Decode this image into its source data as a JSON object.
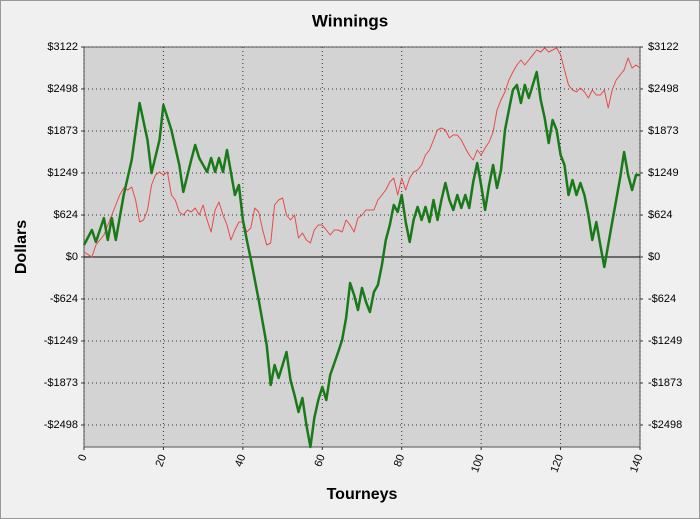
{
  "chart_data": {
    "type": "line",
    "title": "Winnings",
    "x_label": "Tourneys",
    "y_label": "Dollars",
    "xlim": [
      0,
      140
    ],
    "xticks": [
      0,
      20,
      40,
      60,
      80,
      100,
      120,
      140
    ],
    "ylim": [
      -2825,
      3122
    ],
    "yticks": [
      {
        "value": 3122,
        "label": "$3122"
      },
      {
        "value": 2498,
        "label": "$2498"
      },
      {
        "value": 1873,
        "label": "$1873"
      },
      {
        "value": 1249,
        "label": "$1249"
      },
      {
        "value": 624,
        "label": "$624"
      },
      {
        "value": 0,
        "label": "$0"
      },
      {
        "value": -624,
        "label": "-$624"
      },
      {
        "value": -1249,
        "label": "-$1249"
      },
      {
        "value": -1873,
        "label": "-$1873"
      },
      {
        "value": -2498,
        "label": "-$2498"
      }
    ],
    "grid": true,
    "series": [
      {
        "color": "#1a7a1a",
        "width": 2.5,
        "x": [
          0,
          2,
          3,
          5,
          6,
          7,
          8,
          10,
          12,
          14,
          16,
          17,
          19,
          20,
          22,
          24,
          25,
          27,
          28,
          29,
          31,
          32,
          33,
          34,
          35,
          36,
          38,
          39,
          40,
          41,
          42,
          44,
          46,
          47,
          48,
          49,
          50,
          51,
          52,
          53,
          54,
          55,
          56,
          57,
          58,
          59,
          60,
          61,
          62,
          64,
          65,
          66,
          67,
          68,
          69,
          70,
          71,
          72,
          73,
          74,
          75,
          76,
          77,
          78,
          79,
          80,
          81,
          82,
          83,
          84,
          85,
          86,
          87,
          88,
          89,
          90,
          91,
          92,
          93,
          94,
          95,
          96,
          97,
          98,
          99,
          100,
          101,
          102,
          103,
          104,
          105,
          106,
          107,
          108,
          109,
          110,
          111,
          112,
          113,
          114,
          115,
          116,
          117,
          118,
          119,
          120,
          121,
          122,
          123,
          124,
          125,
          126,
          127,
          128,
          129,
          130,
          131,
          132,
          133,
          134,
          135,
          136,
          137,
          138,
          139,
          140
        ],
        "values": [
          178,
          401,
          223,
          580,
          253,
          580,
          253,
          922,
          1442,
          2290,
          1740,
          1249,
          1740,
          2260,
          1888,
          1368,
          967,
          1442,
          1665,
          1472,
          1264,
          1472,
          1264,
          1472,
          1264,
          1591,
          922,
          1071,
          550,
          253,
          -30,
          -639,
          -1309,
          -1903,
          -1606,
          -1799,
          -1606,
          -1413,
          -1829,
          -2052,
          -2305,
          -2097,
          -2498,
          -2825,
          -2394,
          -2126,
          -1933,
          -2126,
          -1755,
          -1413,
          -1234,
          -907,
          -387,
          -565,
          -788,
          -461,
          -669,
          -818,
          -520,
          -416,
          -119,
          253,
          476,
          773,
          669,
          922,
          520,
          223,
          550,
          744,
          550,
          744,
          520,
          848,
          550,
          848,
          1100,
          848,
          699,
          922,
          729,
          922,
          729,
          1115,
          1398,
          1071,
          699,
          1071,
          1368,
          1026,
          1294,
          1888,
          2186,
          2483,
          2558,
          2290,
          2558,
          2364,
          2558,
          2751,
          2335,
          2067,
          1695,
          2037,
          1888,
          1517,
          1368,
          922,
          1145,
          922,
          1100,
          922,
          625,
          253,
          520,
          178,
          -149,
          178,
          520,
          848,
          1175,
          1561,
          1219,
          996,
          1219,
          1219
        ]
      },
      {
        "color": "#e84a4a",
        "width": 1,
        "x": [
          0,
          2,
          3,
          5,
          7,
          9,
          10,
          11,
          12,
          13,
          14,
          15,
          16,
          17,
          18,
          19,
          20,
          21,
          22,
          23,
          24,
          25,
          26,
          27,
          28,
          29,
          30,
          31,
          32,
          33,
          34,
          35,
          36,
          37,
          38,
          39,
          40,
          41,
          42,
          43,
          44,
          45,
          46,
          47,
          48,
          49,
          50,
          51,
          52,
          53,
          54,
          55,
          56,
          57,
          58,
          59,
          60,
          61,
          62,
          63,
          64,
          65,
          66,
          67,
          68,
          69,
          70,
          71,
          72,
          73,
          74,
          75,
          76,
          77,
          78,
          79,
          80,
          81,
          82,
          83,
          84,
          85,
          86,
          87,
          88,
          89,
          90,
          91,
          92,
          93,
          94,
          95,
          96,
          97,
          98,
          99,
          100,
          101,
          102,
          103,
          104,
          105,
          106,
          107,
          108,
          109,
          110,
          111,
          112,
          113,
          114,
          115,
          116,
          117,
          118,
          119,
          120,
          121,
          122,
          123,
          124,
          125,
          126,
          127,
          128,
          129,
          130,
          131,
          132,
          133,
          134,
          135,
          136,
          137,
          138,
          139,
          140
        ],
        "values": [
          74,
          0,
          178,
          327,
          625,
          922,
          1026,
          996,
          1041,
          848,
          520,
          550,
          699,
          1071,
          1219,
          1264,
          1219,
          1264,
          922,
          848,
          669,
          625,
          699,
          669,
          729,
          625,
          773,
          550,
          372,
          699,
          818,
          625,
          476,
          253,
          401,
          520,
          520,
          372,
          431,
          729,
          669,
          401,
          178,
          208,
          773,
          848,
          877,
          625,
          550,
          625,
          283,
          357,
          253,
          208,
          401,
          476,
          476,
          401,
          327,
          401,
          401,
          372,
          550,
          476,
          372,
          580,
          625,
          699,
          699,
          699,
          848,
          922,
          996,
          1115,
          1175,
          922,
          1175,
          996,
          1175,
          1264,
          1294,
          1368,
          1517,
          1591,
          1740,
          1888,
          1918,
          1888,
          1770,
          1814,
          1814,
          1740,
          1621,
          1517,
          1442,
          1591,
          1517,
          1621,
          1710,
          1859,
          2186,
          2335,
          2454,
          2632,
          2751,
          2855,
          2929,
          2855,
          2929,
          3004,
          3078,
          3048,
          3108,
          3048,
          3078,
          3108,
          3004,
          2781,
          2558,
          2483,
          2454,
          2513,
          2454,
          2364,
          2483,
          2409,
          2409,
          2483,
          2216,
          2483,
          2632,
          2706,
          2781,
          2959,
          2810,
          2855,
          2810
        ]
      }
    ]
  }
}
